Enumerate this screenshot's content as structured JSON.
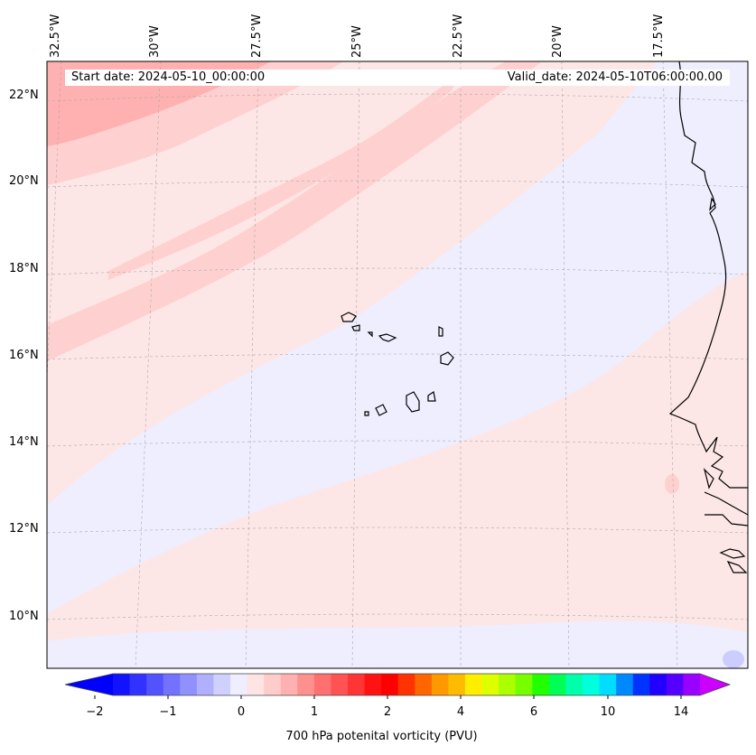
{
  "header": {
    "start_date": "Start date: 2024-05-10_00:00:00",
    "valid_date": "Valid_date: 2024-05-10T06:00:00.00"
  },
  "map": {
    "longitude_labels": [
      "32.5°W",
      "30°W",
      "27.5°W",
      "25°W",
      "22.5°W",
      "20°W",
      "17.5°W"
    ],
    "latitude_labels": [
      "22°N",
      "20°N",
      "18°N",
      "16°N",
      "14°N",
      "12°N",
      "10°N"
    ],
    "field_colors": {
      "background": "#fde6e6",
      "weak_negative": "#eeeefe",
      "weak_positive": "#ffd0d0",
      "moderate_positive": "#ffb0b0",
      "coastline": "#000000"
    }
  },
  "colorbar": {
    "title": "700 hPa potenital vorticity (PVU)",
    "tick_labels": [
      "−2",
      "−1",
      "0",
      "1",
      "2",
      "4",
      "6",
      "10",
      "14"
    ],
    "colors": [
      "#1212ff",
      "#3232ff",
      "#5252ff",
      "#7272ff",
      "#9090ff",
      "#b0b0ff",
      "#d0d0ff",
      "#eeeeff",
      "#ffe4e4",
      "#ffcccc",
      "#ffb0b0",
      "#ff9090",
      "#ff7070",
      "#ff5252",
      "#ff3434",
      "#ff1212",
      "#ff0000",
      "#ff3300",
      "#ff6600",
      "#ff9900",
      "#ffbb00",
      "#ffee00",
      "#ddff00",
      "#aaff00",
      "#77ff00",
      "#22ff00",
      "#00ff55",
      "#00ffaa",
      "#00ffdd",
      "#00ddff",
      "#0088ff",
      "#0033ff",
      "#2200ff",
      "#5500ff",
      "#9900ff"
    ],
    "under_color": "#0000ff",
    "over_color": "#cc00ff"
  }
}
